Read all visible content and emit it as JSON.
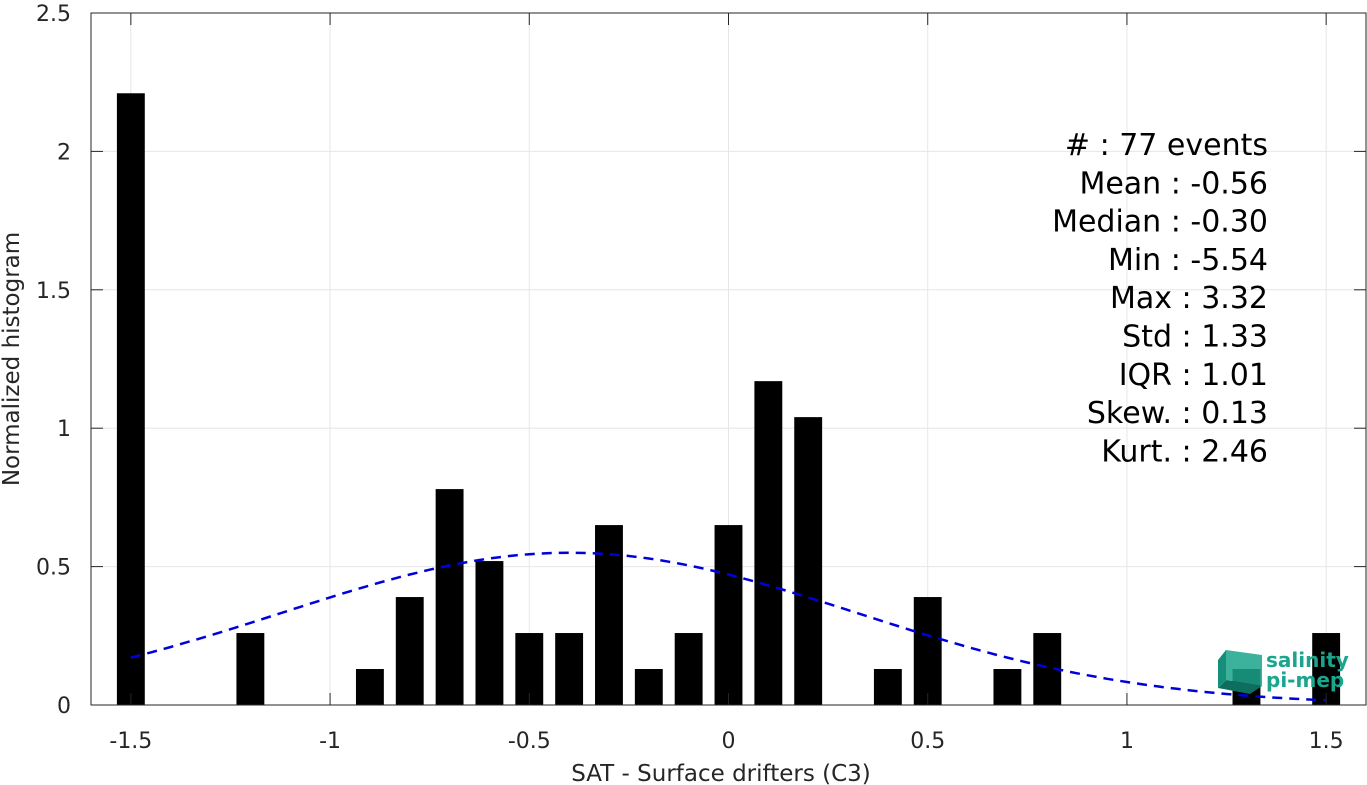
{
  "chart_data": {
    "type": "bar",
    "xlabel": "SAT - Surface drifters (C3)",
    "ylabel": "Normalized histogram",
    "xlim": [
      -1.6,
      1.6
    ],
    "ylim": [
      0,
      2.5
    ],
    "xticks": [
      "-1.5",
      "-1",
      "-0.5",
      "0",
      "0.5",
      "1",
      "1.5"
    ],
    "xtick_values": [
      -1.5,
      -1,
      -0.5,
      0,
      0.5,
      1,
      1.5
    ],
    "yticks": [
      "0",
      "0.5",
      "1",
      "1.5",
      "2",
      "2.5"
    ],
    "ytick_values": [
      0,
      0.5,
      1,
      1.5,
      2,
      2.5
    ],
    "grid": true,
    "bar_color": "#000000",
    "bar_width": 0.07,
    "bars": [
      {
        "x": -1.5,
        "value": 2.21
      },
      {
        "x": -1.2,
        "value": 0.26
      },
      {
        "x": -0.9,
        "value": 0.13
      },
      {
        "x": -0.8,
        "value": 0.39
      },
      {
        "x": -0.7,
        "value": 0.78
      },
      {
        "x": -0.6,
        "value": 0.52
      },
      {
        "x": -0.5,
        "value": 0.26
      },
      {
        "x": -0.4,
        "value": 0.26
      },
      {
        "x": -0.3,
        "value": 0.65
      },
      {
        "x": -0.2,
        "value": 0.13
      },
      {
        "x": -0.1,
        "value": 0.26
      },
      {
        "x": 0.0,
        "value": 0.65
      },
      {
        "x": 0.1,
        "value": 1.17
      },
      {
        "x": 0.2,
        "value": 1.04
      },
      {
        "x": 0.4,
        "value": 0.13
      },
      {
        "x": 0.5,
        "value": 0.39
      },
      {
        "x": 0.7,
        "value": 0.13
      },
      {
        "x": 0.8,
        "value": 0.26
      },
      {
        "x": 1.3,
        "value": 0.13
      },
      {
        "x": 1.5,
        "value": 0.26
      }
    ],
    "fit_curve": {
      "type": "normal",
      "mean": -0.4,
      "std": 0.72,
      "peak": 0.55,
      "x_range": [
        -1.5,
        1.5
      ],
      "color": "#0000dd",
      "style": "dashed"
    },
    "stats": [
      "#  : 77 events",
      "Mean : -0.56",
      "Median : -0.30",
      "Min : -5.54",
      "Max : 3.32",
      "Std : 1.33",
      "IQR : 1.01",
      "Skew. : 0.13",
      "Kurt. : 2.46"
    ]
  },
  "logo": {
    "line1": "salinity",
    "line2": "pi-mep",
    "color": "#1aa58c"
  }
}
